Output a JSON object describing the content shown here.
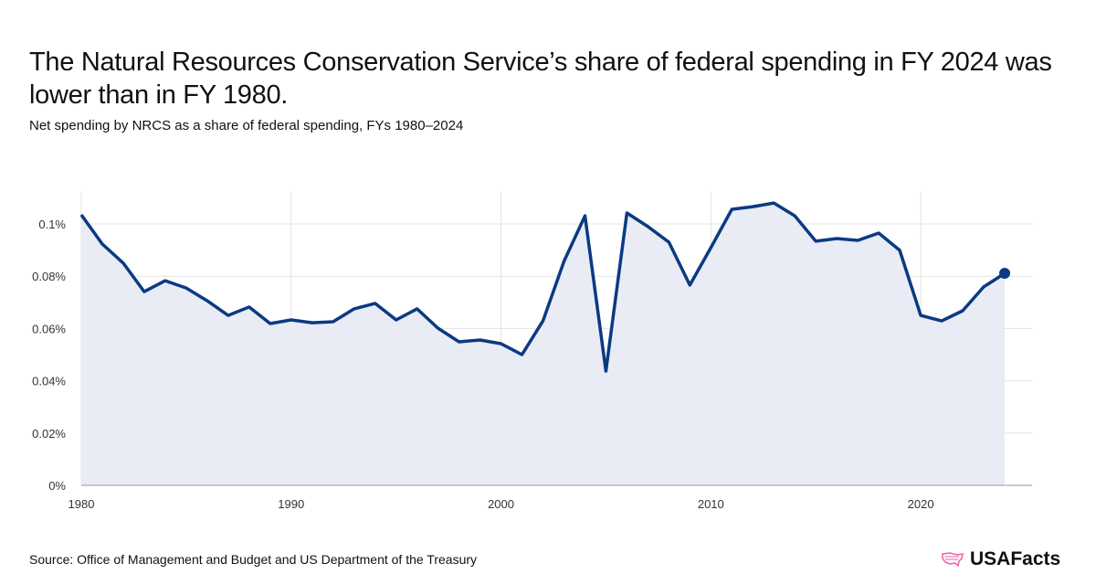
{
  "title": "The Natural Resources Conservation Service’s share of federal spending in FY 2024 was lower than in FY 1980.",
  "subtitle": "Net spending by NRCS as a share of federal spending, FYs 1980–2024",
  "source": "Source: Office of Management and Budget and US Department of the Treasury",
  "logo": "USAFacts",
  "colors": {
    "line": "#0b3a82",
    "fill": "#e9ecf4",
    "grid": "#e3e3e3",
    "logo_accent": "#ee5fa8"
  },
  "chart_data": {
    "type": "area",
    "xlim": [
      1980,
      2024
    ],
    "ylim": [
      0,
      0.11
    ],
    "unit": "%",
    "grid": true,
    "x_ticks": [
      1980,
      1990,
      2000,
      2010,
      2020
    ],
    "x_tick_labels": [
      "1980",
      "1990",
      "2000",
      "2010",
      "2020"
    ],
    "y_ticks": [
      0,
      0.02,
      0.04,
      0.06,
      0.08,
      0.1
    ],
    "y_tick_labels": [
      "0%",
      "0.02%",
      "0.04%",
      "0.06%",
      "0.08%",
      "0.1%"
    ],
    "x": [
      1980,
      1981,
      1982,
      1983,
      1984,
      1985,
      1986,
      1987,
      1988,
      1989,
      1990,
      1991,
      1992,
      1993,
      1994,
      1995,
      1996,
      1997,
      1998,
      1999,
      2000,
      2001,
      2002,
      2003,
      2004,
      2005,
      2006,
      2007,
      2008,
      2009,
      2010,
      2011,
      2012,
      2013,
      2014,
      2015,
      2016,
      2017,
      2018,
      2019,
      2020,
      2021,
      2022,
      2023,
      2024
    ],
    "values": [
      0.1035,
      0.0923,
      0.085,
      0.0741,
      0.0783,
      0.0755,
      0.0706,
      0.065,
      0.0682,
      0.0619,
      0.0633,
      0.0622,
      0.0626,
      0.0675,
      0.0696,
      0.0633,
      0.0675,
      0.0601,
      0.0549,
      0.0556,
      0.0542,
      0.05,
      0.0629,
      0.0857,
      0.1031,
      0.0437,
      0.1042,
      0.099,
      0.093,
      0.0766,
      0.0909,
      0.1056,
      0.1066,
      0.108,
      0.1031,
      0.0934,
      0.0944,
      0.0937,
      0.0965,
      0.0899,
      0.065,
      0.0629,
      0.0668,
      0.0759,
      0.0811
    ]
  }
}
